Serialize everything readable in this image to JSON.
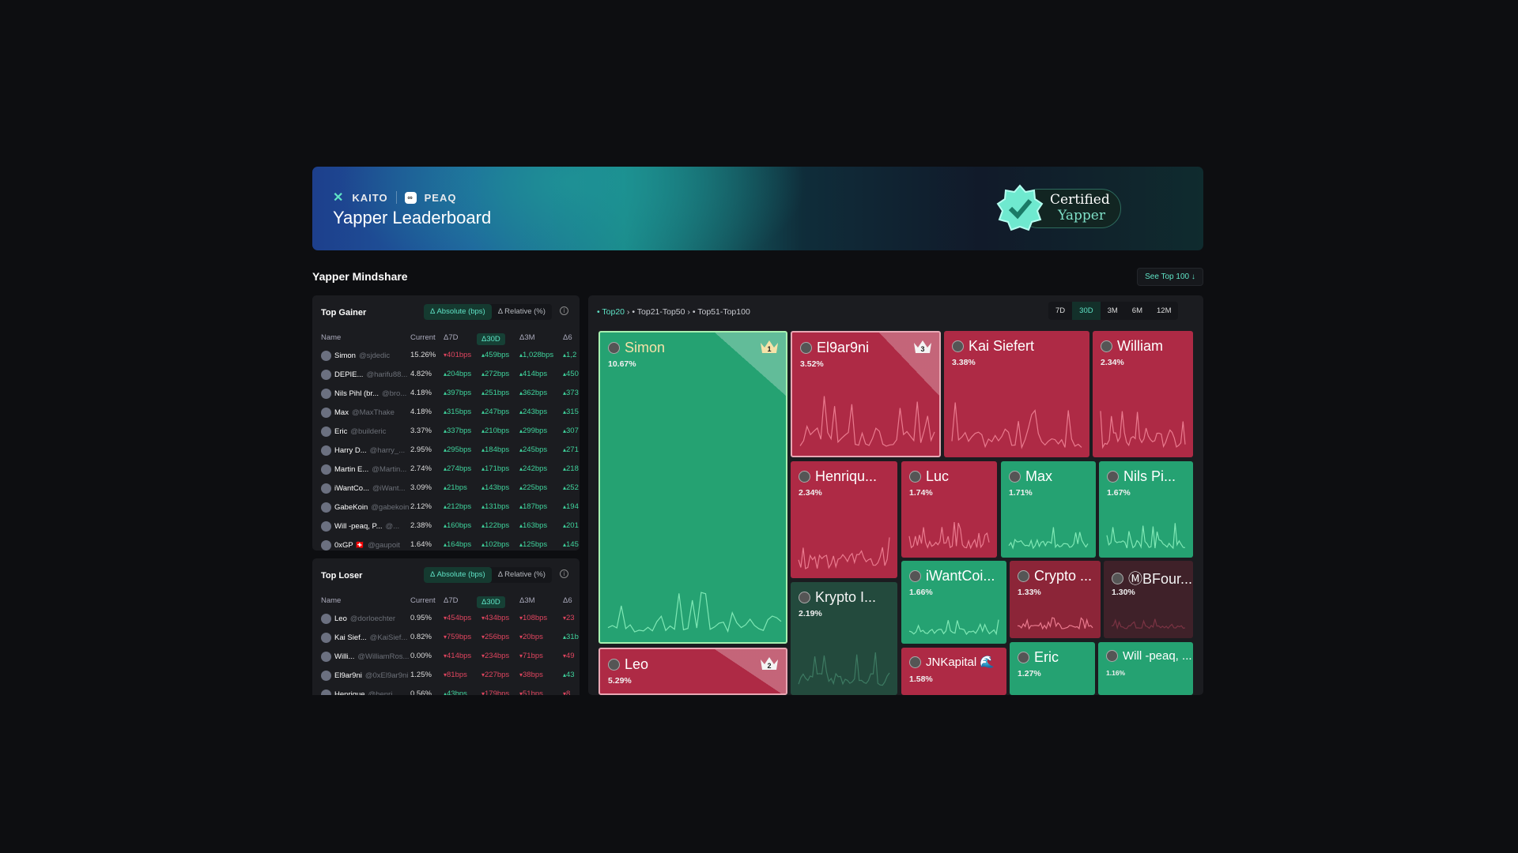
{
  "banner": {
    "brand1": "KAITO",
    "brand2": "PEAQ",
    "title": "Yapper Leaderboard",
    "cert_line1": "Certified",
    "cert_line2": "Yapper"
  },
  "section": {
    "title": "Yapper Mindshare",
    "see_top": "See Top 100 ↓"
  },
  "toggle": {
    "absolute": "Δ Absolute (bps)",
    "relative": "Δ Relative (%)",
    "info": "i"
  },
  "columns": [
    "Name",
    "Current",
    "Δ7D",
    "Δ30D",
    "Δ3M",
    "Δ6"
  ],
  "top_gainer": {
    "title": "Top Gainer",
    "rows": [
      {
        "name": "Simon",
        "handle": "@sjdedic",
        "current": "15.26%",
        "d7": {
          "v": "401bps",
          "dir": "dn"
        },
        "d30": {
          "v": "459bps",
          "dir": "up"
        },
        "d3m": {
          "v": "1,028bps",
          "dir": "up"
        },
        "d6": {
          "v": "1,2",
          "dir": "up"
        }
      },
      {
        "name": "DEPIE...",
        "handle": "@harifu88...",
        "current": "4.82%",
        "d7": {
          "v": "204bps",
          "dir": "up"
        },
        "d30": {
          "v": "272bps",
          "dir": "up"
        },
        "d3m": {
          "v": "414bps",
          "dir": "up"
        },
        "d6": {
          "v": "450",
          "dir": "up"
        }
      },
      {
        "name": "Nils Pihl (br...",
        "handle": "@bro...",
        "current": "4.18%",
        "d7": {
          "v": "397bps",
          "dir": "up"
        },
        "d30": {
          "v": "251bps",
          "dir": "up"
        },
        "d3m": {
          "v": "362bps",
          "dir": "up"
        },
        "d6": {
          "v": "373",
          "dir": "up"
        }
      },
      {
        "name": "Max",
        "handle": "@MaxThake",
        "current": "4.18%",
        "d7": {
          "v": "315bps",
          "dir": "up"
        },
        "d30": {
          "v": "247bps",
          "dir": "up"
        },
        "d3m": {
          "v": "243bps",
          "dir": "up"
        },
        "d6": {
          "v": "315",
          "dir": "up"
        }
      },
      {
        "name": "Eric",
        "handle": "@builderic",
        "current": "3.37%",
        "d7": {
          "v": "337bps",
          "dir": "up"
        },
        "d30": {
          "v": "210bps",
          "dir": "up"
        },
        "d3m": {
          "v": "299bps",
          "dir": "up"
        },
        "d6": {
          "v": "307",
          "dir": "up"
        }
      },
      {
        "name": "Harry D...",
        "handle": "@harry_...",
        "current": "2.95%",
        "d7": {
          "v": "295bps",
          "dir": "up"
        },
        "d30": {
          "v": "184bps",
          "dir": "up"
        },
        "d3m": {
          "v": "245bps",
          "dir": "up"
        },
        "d6": {
          "v": "271",
          "dir": "up"
        }
      },
      {
        "name": "Martin E...",
        "handle": "@Martin...",
        "current": "2.74%",
        "d7": {
          "v": "274bps",
          "dir": "up"
        },
        "d30": {
          "v": "171bps",
          "dir": "up"
        },
        "d3m": {
          "v": "242bps",
          "dir": "up"
        },
        "d6": {
          "v": "218",
          "dir": "up"
        }
      },
      {
        "name": "iWantCo...",
        "handle": "@iWant...",
        "current": "3.09%",
        "d7": {
          "v": "21bps",
          "dir": "up"
        },
        "d30": {
          "v": "143bps",
          "dir": "up"
        },
        "d3m": {
          "v": "225bps",
          "dir": "up"
        },
        "d6": {
          "v": "252",
          "dir": "up"
        }
      },
      {
        "name": "GabeKoin",
        "handle": "@gabekoin",
        "current": "2.12%",
        "d7": {
          "v": "212bps",
          "dir": "up"
        },
        "d30": {
          "v": "131bps",
          "dir": "up"
        },
        "d3m": {
          "v": "187bps",
          "dir": "up"
        },
        "d6": {
          "v": "194",
          "dir": "up"
        }
      },
      {
        "name": "Will -peaq, P...",
        "handle": "@...",
        "current": "2.38%",
        "d7": {
          "v": "160bps",
          "dir": "up"
        },
        "d30": {
          "v": "122bps",
          "dir": "up"
        },
        "d3m": {
          "v": "163bps",
          "dir": "up"
        },
        "d6": {
          "v": "201",
          "dir": "up"
        }
      },
      {
        "name": "0xGP 🇨🇭",
        "handle": "@gaupoit",
        "current": "1.64%",
        "d7": {
          "v": "164bps",
          "dir": "up"
        },
        "d30": {
          "v": "102bps",
          "dir": "up"
        },
        "d3m": {
          "v": "125bps",
          "dir": "up"
        },
        "d6": {
          "v": "145",
          "dir": "up"
        }
      }
    ]
  },
  "top_loser": {
    "title": "Top Loser",
    "rows": [
      {
        "name": "Leo",
        "handle": "@dorloechter",
        "current": "0.95%",
        "d7": {
          "v": "454bps",
          "dir": "dn"
        },
        "d30": {
          "v": "434bps",
          "dir": "dn"
        },
        "d3m": {
          "v": "108bps",
          "dir": "dn"
        },
        "d6": {
          "v": "23",
          "dir": "dn"
        }
      },
      {
        "name": "Kai Sief...",
        "handle": "@KaiSief...",
        "current": "0.82%",
        "d7": {
          "v": "759bps",
          "dir": "dn"
        },
        "d30": {
          "v": "256bps",
          "dir": "dn"
        },
        "d3m": {
          "v": "20bps",
          "dir": "dn"
        },
        "d6": {
          "v": "31b",
          "dir": "up"
        }
      },
      {
        "name": "Willi...",
        "handle": "@WilliamRos...",
        "current": "0.00%",
        "d7": {
          "v": "414bps",
          "dir": "dn"
        },
        "d30": {
          "v": "234bps",
          "dir": "dn"
        },
        "d3m": {
          "v": "71bps",
          "dir": "dn"
        },
        "d6": {
          "v": "49",
          "dir": "dn"
        }
      },
      {
        "name": "El9ar9ni",
        "handle": "@0xEl9ar9ni",
        "current": "1.25%",
        "d7": {
          "v": "81bps",
          "dir": "dn"
        },
        "d30": {
          "v": "227bps",
          "dir": "dn"
        },
        "d3m": {
          "v": "38bps",
          "dir": "dn"
        },
        "d6": {
          "v": "43",
          "dir": "up"
        }
      },
      {
        "name": "Henrique",
        "handle": "@henri",
        "current": "0.56%",
        "d7": {
          "v": "43bps",
          "dir": "up"
        },
        "d30": {
          "v": "179bps",
          "dir": "dn"
        },
        "d3m": {
          "v": "51bps",
          "dir": "dn"
        },
        "d6": {
          "v": "8",
          "dir": "dn"
        }
      }
    ]
  },
  "treemap": {
    "breadcrumbs": [
      "Top20",
      "Top21-Top50",
      "Top51-Top100"
    ],
    "timeframes": [
      "7D",
      "30D",
      "3M",
      "6M",
      "12M"
    ],
    "active_timeframe": "30D",
    "colors": {
      "green": "#25a272",
      "red": "#ae2a45",
      "dark_green": "#234a3d",
      "dark_red": "#3f2129",
      "mid_red": "#8c2538"
    },
    "tiles": [
      {
        "name": "Simon",
        "pct": "10.67%",
        "color": "green",
        "rank": "1"
      },
      {
        "name": "El9ar9ni",
        "pct": "3.52%",
        "color": "red",
        "rank": "3"
      },
      {
        "name": "Kai Siefert",
        "pct": "3.38%",
        "color": "red"
      },
      {
        "name": "William",
        "pct": "2.34%",
        "color": "red"
      },
      {
        "name": "Henriqu...",
        "pct": "2.34%",
        "color": "red"
      },
      {
        "name": "Luc",
        "pct": "1.74%",
        "color": "red"
      },
      {
        "name": "Max",
        "pct": "1.71%",
        "color": "green"
      },
      {
        "name": "Nils Pi...",
        "pct": "1.67%",
        "color": "green"
      },
      {
        "name": "Krypto I...",
        "pct": "2.19%",
        "color": "dark_green"
      },
      {
        "name": "iWantCoi...",
        "pct": "1.66%",
        "color": "green"
      },
      {
        "name": "Crypto ...",
        "pct": "1.33%",
        "color": "mid_red"
      },
      {
        "name": "ⓂBFour...",
        "pct": "1.30%",
        "color": "dark_red"
      },
      {
        "name": "Leo",
        "pct": "5.29%",
        "color": "red",
        "rank": "2"
      },
      {
        "name": "JNKapital 🌊",
        "pct": "1.58%",
        "color": "red"
      },
      {
        "name": "Eric",
        "pct": "1.27%",
        "color": "green"
      },
      {
        "name": "Will -peaq, ...",
        "pct": "1.16%",
        "color": "green"
      }
    ]
  }
}
